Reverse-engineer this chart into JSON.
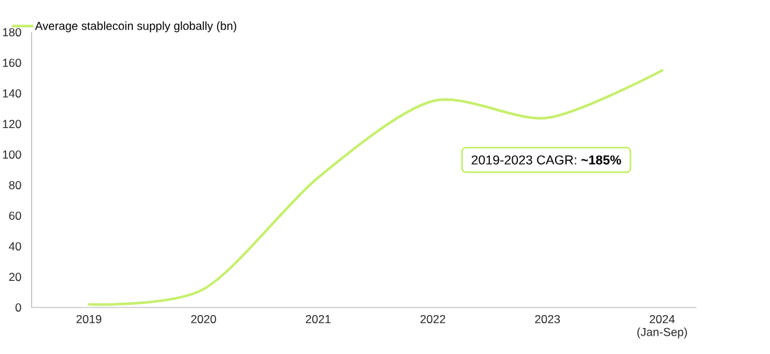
{
  "chart_data": {
    "type": "line",
    "categories": [
      "2019",
      "2020",
      "2021",
      "2022",
      "2023",
      "2024 (Jan-Sep)"
    ],
    "series": [
      {
        "name": "Average stablecoin supply globally (bn)",
        "color": "#c6ef6e",
        "values": [
          2,
          12,
          85,
          135,
          124,
          155
        ]
      }
    ],
    "ylim": [
      0,
      180
    ],
    "yticks": [
      0,
      20,
      40,
      60,
      80,
      100,
      120,
      140,
      160,
      180
    ],
    "grid": false,
    "legend": "top left",
    "marker": "none",
    "line_style": "solid",
    "annotations": [
      "2019-2023 CAGR: **~185%**"
    ]
  }
}
